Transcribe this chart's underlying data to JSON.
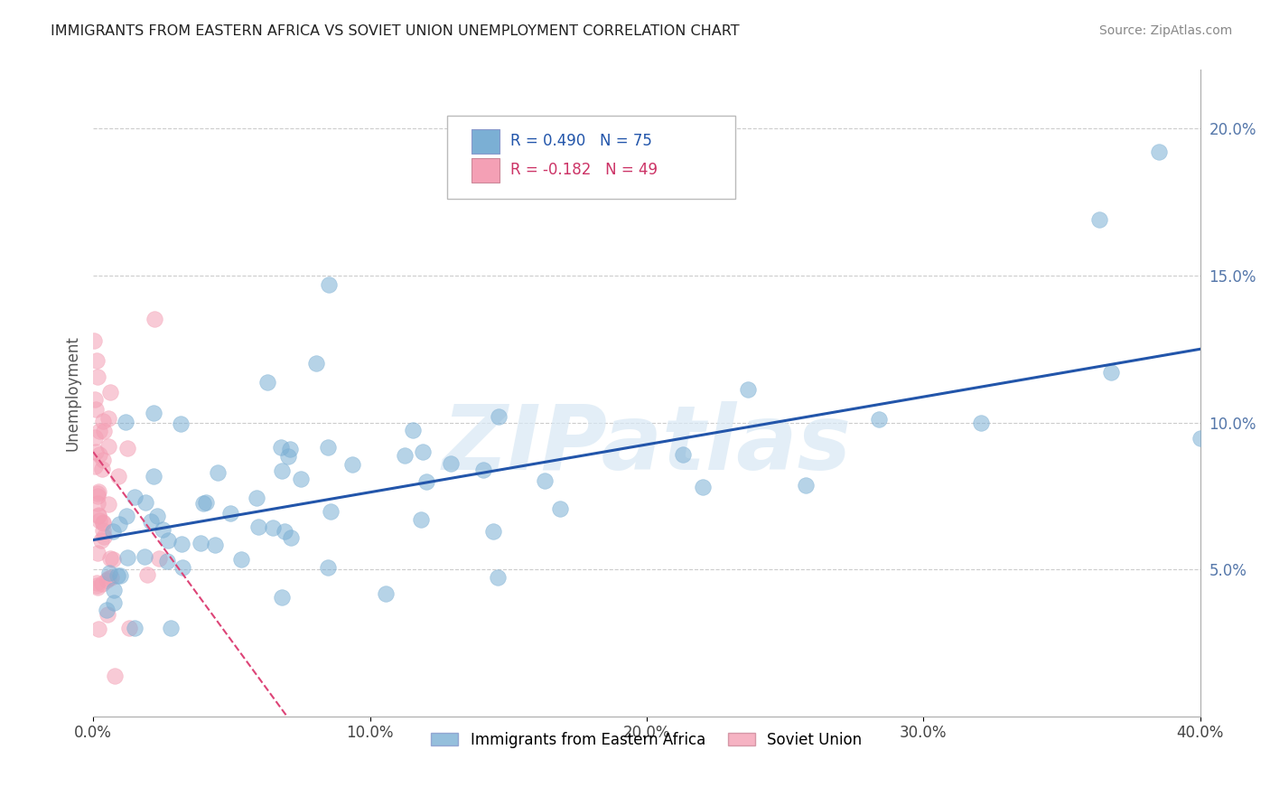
{
  "title": "IMMIGRANTS FROM EASTERN AFRICA VS SOVIET UNION UNEMPLOYMENT CORRELATION CHART",
  "source": "Source: ZipAtlas.com",
  "ylabel": "Unemployment",
  "xlim": [
    0.0,
    0.4
  ],
  "ylim": [
    0.0,
    0.22
  ],
  "yticks": [
    0.05,
    0.1,
    0.15,
    0.2
  ],
  "ytick_labels": [
    "5.0%",
    "10.0%",
    "15.0%",
    "20.0%"
  ],
  "xticks": [
    0.0,
    0.1,
    0.2,
    0.3,
    0.4
  ],
  "xtick_labels": [
    "0.0%",
    "10.0%",
    "20.0%",
    "30.0%",
    "40.0%"
  ],
  "r_eastern": 0.49,
  "n_eastern": 75,
  "r_soviet": -0.182,
  "n_soviet": 49,
  "blue_color": "#7BAFD4",
  "pink_color": "#F4A0B5",
  "trend_blue": "#2255AA",
  "trend_pink": "#DD4477",
  "watermark": "ZIPatlas",
  "background_color": "#FFFFFF",
  "grid_color": "#CCCCCC",
  "blue_trend_start_y": 0.06,
  "blue_trend_end_y": 0.125,
  "pink_trend_start_y": 0.09,
  "pink_trend_end_x": 0.07
}
